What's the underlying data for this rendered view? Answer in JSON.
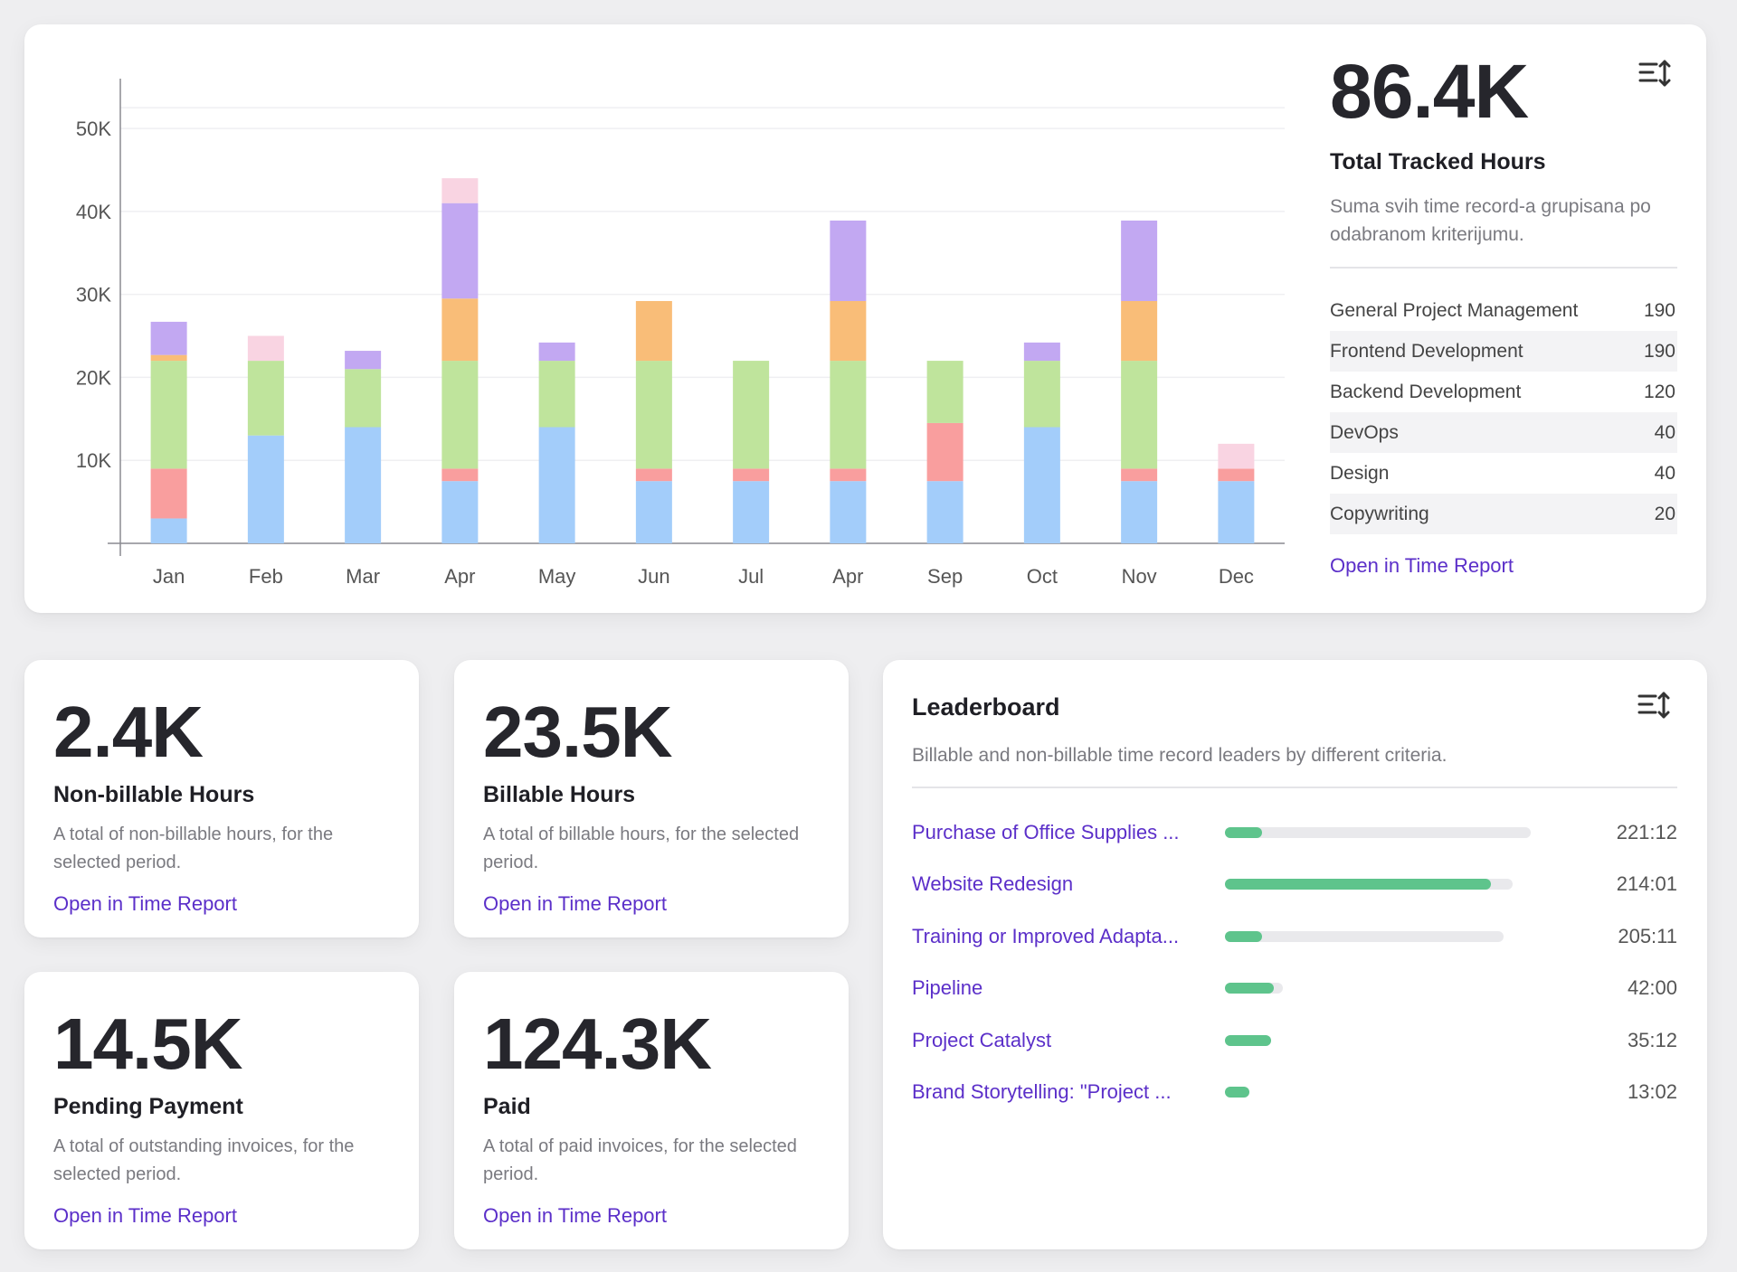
{
  "colors": {
    "link": "#5b2fc9",
    "progress": "#5ec48c",
    "series": [
      "#a3cdfa",
      "#f99e9e",
      "#bfe49c",
      "#f9bd78",
      "#c2a8f2",
      "#f9d4e2"
    ]
  },
  "tracked": {
    "total": "86.4K",
    "title": "Total Tracked Hours",
    "description": "Suma svih time record-a grupisana po odabranom kriterijumu.",
    "link": "Open in Time Report",
    "filter_icon": "sort-filter-icon",
    "categories": [
      {
        "name": "General Project Management",
        "value": "190"
      },
      {
        "name": "Frontend Development",
        "value": "190"
      },
      {
        "name": "Backend Development",
        "value": "120"
      },
      {
        "name": "DevOps",
        "value": "40"
      },
      {
        "name": "Design",
        "value": "40"
      },
      {
        "name": "Copywriting",
        "value": "20"
      }
    ]
  },
  "chart_data": {
    "type": "bar",
    "stacked": true,
    "categories": [
      "Jan",
      "Feb",
      "Mar",
      "Apr",
      "May",
      "Jun",
      "Jul",
      "Apr",
      "Sep",
      "Oct",
      "Nov",
      "Dec"
    ],
    "series": [
      {
        "name": "segment-1",
        "values": [
          3000,
          13000,
          14000,
          7500,
          14000,
          7500,
          7500,
          7500,
          7500,
          14000,
          7500,
          7500
        ]
      },
      {
        "name": "segment-2",
        "values": [
          6000,
          0,
          0,
          1500,
          0,
          1500,
          1500,
          1500,
          7000,
          0,
          1500,
          1500
        ]
      },
      {
        "name": "segment-3",
        "values": [
          13000,
          9000,
          7000,
          13000,
          8000,
          13000,
          13000,
          13000,
          7500,
          8000,
          13000,
          0
        ]
      },
      {
        "name": "segment-4",
        "values": [
          700,
          0,
          0,
          7500,
          0,
          7200,
          0,
          7200,
          0,
          0,
          7200,
          0
        ]
      },
      {
        "name": "segment-5",
        "values": [
          4000,
          0,
          2200,
          11500,
          2200,
          0,
          0,
          9700,
          0,
          2200,
          9700,
          0
        ]
      },
      {
        "name": "segment-6",
        "values": [
          0,
          3000,
          0,
          3000,
          0,
          0,
          0,
          0,
          0,
          0,
          0,
          3000
        ]
      }
    ],
    "yticks": [
      10000,
      20000,
      30000,
      40000,
      50000
    ],
    "ytick_labels": [
      "10K",
      "20K",
      "30K",
      "40K",
      "50K"
    ],
    "ylim": [
      0,
      56000
    ],
    "grid": true
  },
  "stats": [
    {
      "value": "2.4K",
      "title": "Non-billable Hours",
      "description": "A total of non-billable hours, for the selected period.",
      "link": "Open in Time Report"
    },
    {
      "value": "23.5K",
      "title": "Billable Hours",
      "description": "A total of billable hours, for the selected period.",
      "link": "Open in Time Report"
    },
    {
      "value": "14.5K",
      "title": "Pending Payment",
      "description": "A total of outstanding invoices, for the selected period.",
      "link": "Open in Time Report"
    },
    {
      "value": "124.3K",
      "title": "Paid",
      "description": "A total of paid invoices, for the selected period.",
      "link": "Open in Time Report"
    }
  ],
  "leaderboard": {
    "title": "Leaderboard",
    "description": "Billable and non-billable time record leaders by different criteria.",
    "filter_icon": "sort-filter-icon",
    "items": [
      {
        "name": "Purchase of Office Supplies ...",
        "time": "221:12",
        "progress": 0.12,
        "track": 1.0
      },
      {
        "name": "Website Redesign",
        "time": "214:01",
        "progress": 0.87,
        "track": 0.94
      },
      {
        "name": "Training or Improved Adapta...",
        "time": "205:11",
        "progress": 0.12,
        "track": 0.91
      },
      {
        "name": "Pipeline",
        "time": "42:00",
        "progress": 0.16,
        "track": 0.19
      },
      {
        "name": "Project Catalyst",
        "time": "35:12",
        "progress": 0.15,
        "track": 0.15
      },
      {
        "name": "Brand Storytelling: \"Project ...",
        "time": "13:02",
        "progress": 0.08,
        "track": 0.08
      }
    ]
  }
}
